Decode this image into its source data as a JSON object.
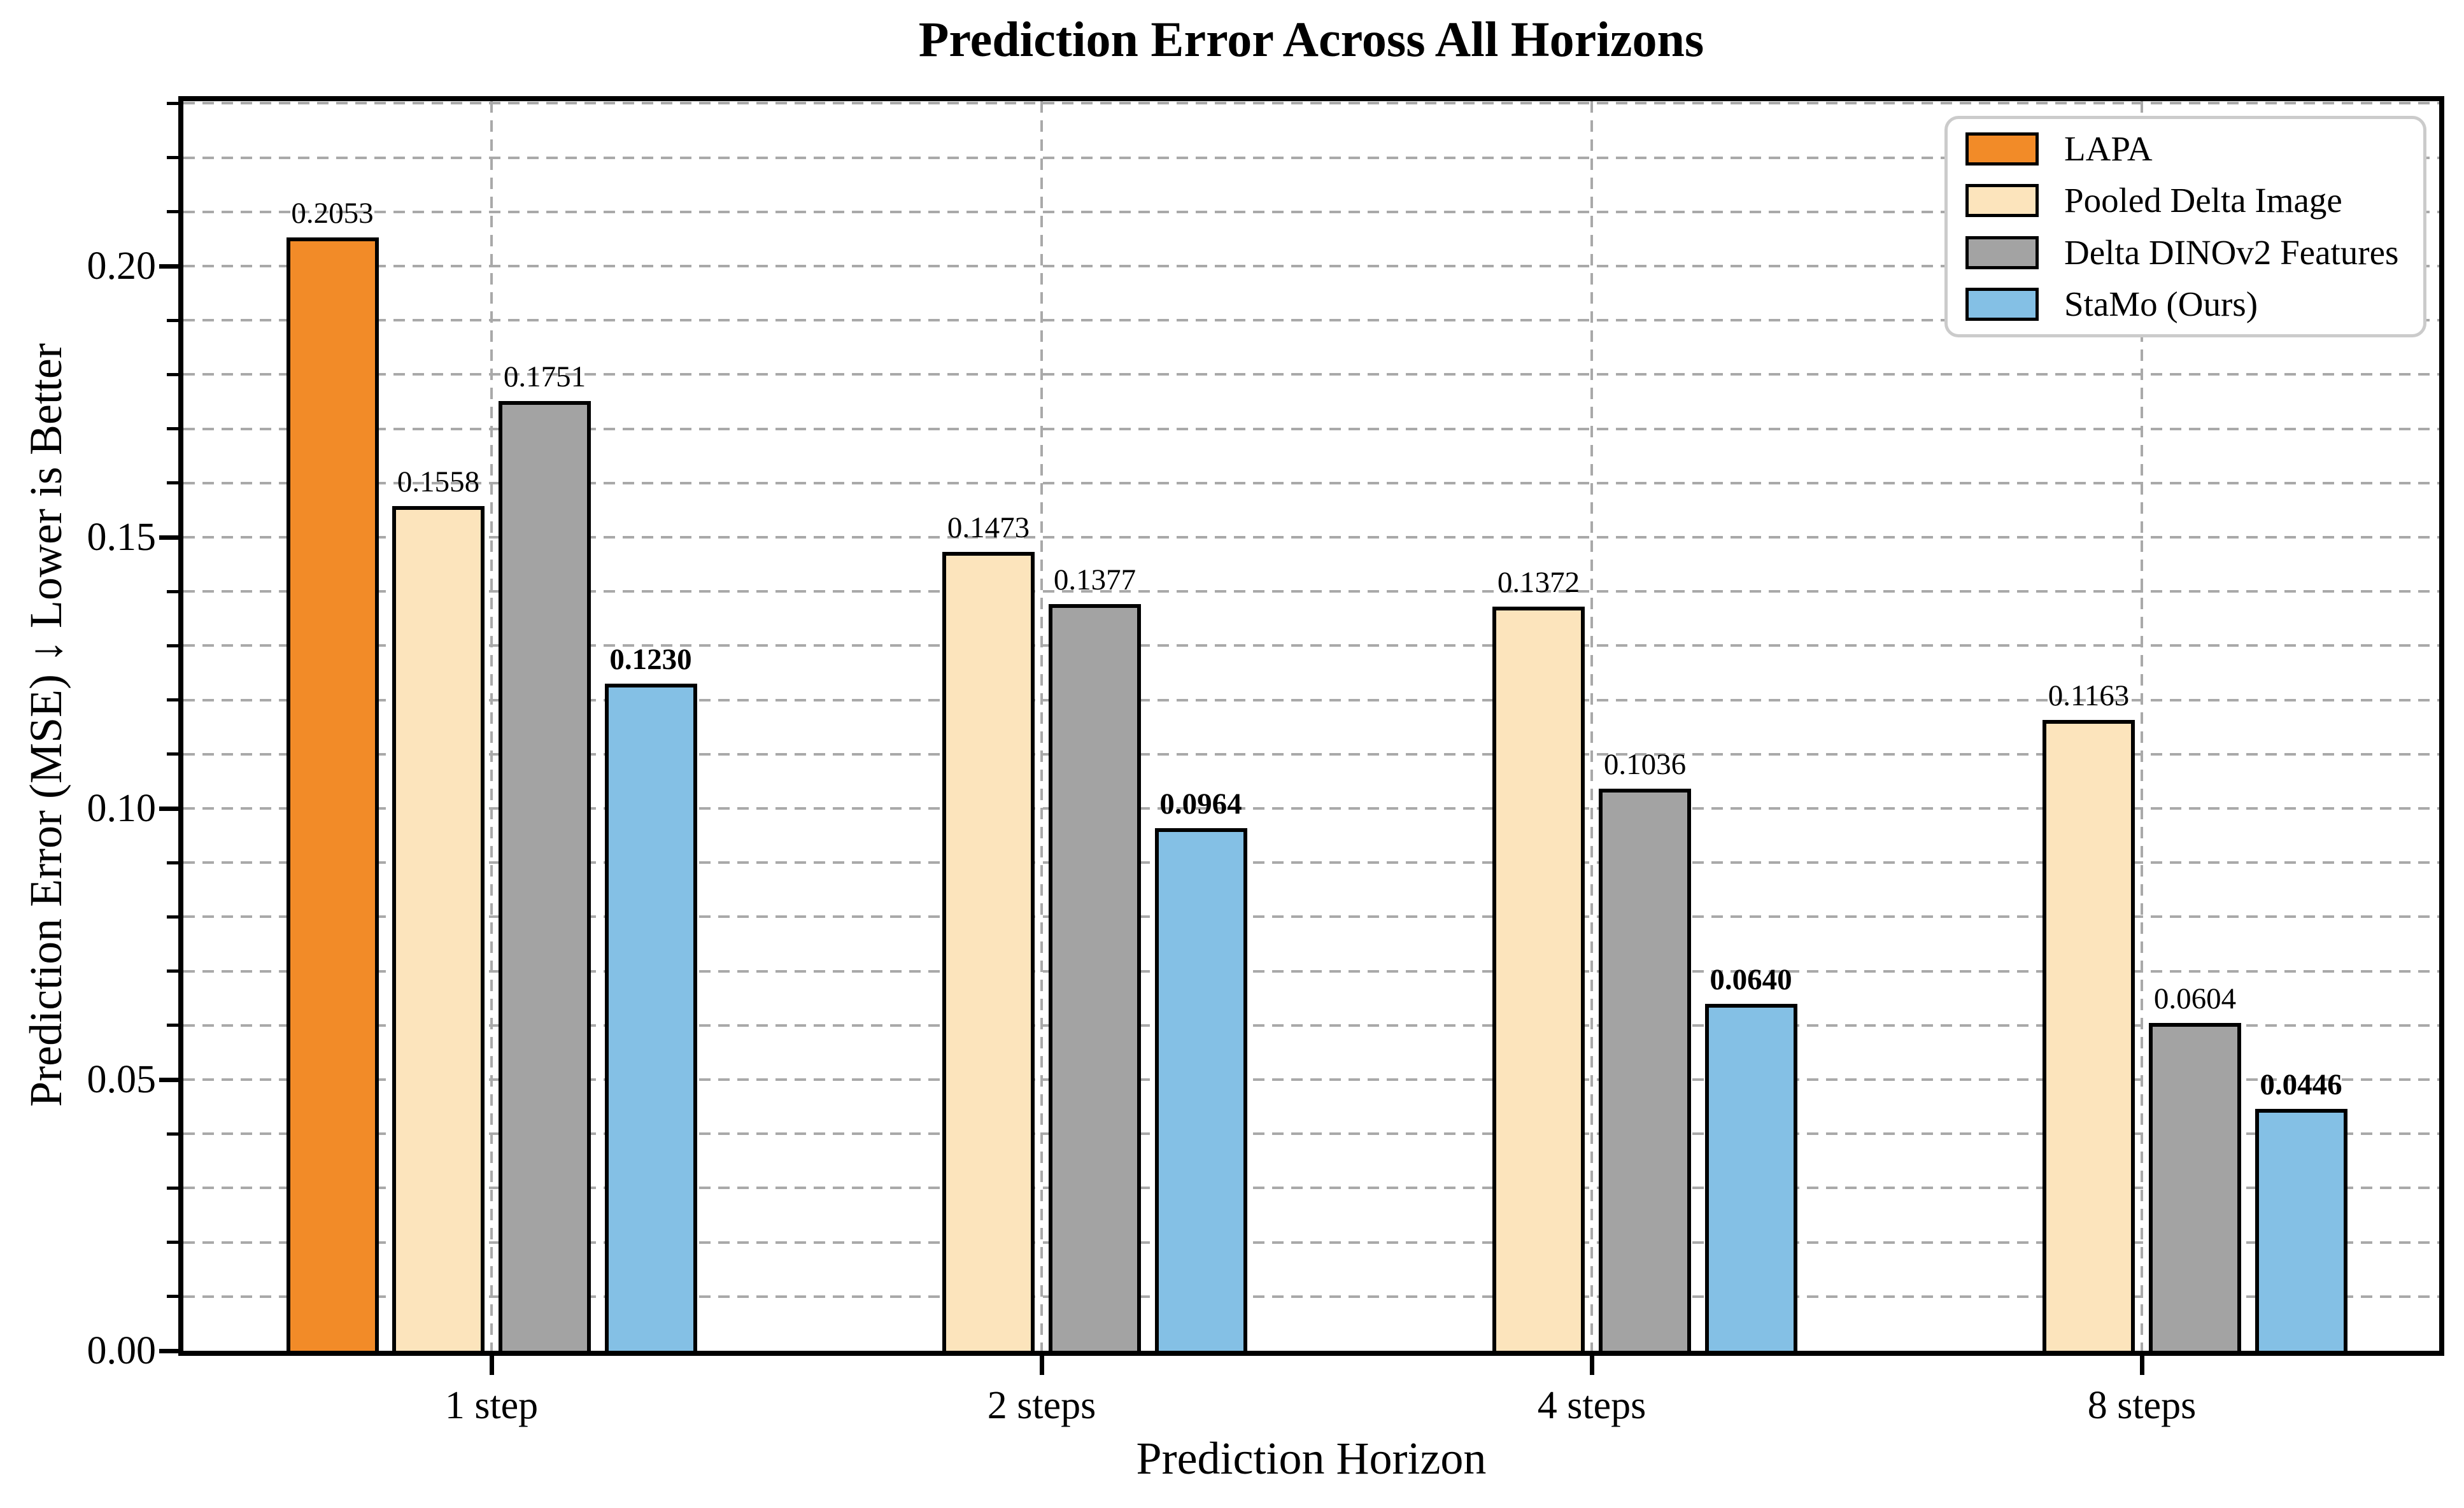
{
  "chart_data": {
    "type": "bar",
    "title": "Prediction Error Across All Horizons",
    "xlabel": "Prediction Horizon",
    "ylabel": "Prediction Error (MSE) ↓ Lower is Better",
    "categories": [
      "1 step",
      "2 steps",
      "4 steps",
      "8 steps"
    ],
    "series": [
      {
        "name": "LAPA",
        "color": "#F28B28",
        "values": [
          0.2053,
          null,
          null,
          null
        ],
        "value_labels": [
          "0.2053",
          null,
          null,
          null
        ],
        "bold_value_labels": false
      },
      {
        "name": "Pooled Delta Image",
        "color": "#FCE4BC",
        "values": [
          0.1558,
          0.1473,
          0.1372,
          0.1163
        ],
        "value_labels": [
          "0.1558",
          "0.1473",
          "0.1372",
          "0.1163"
        ],
        "bold_value_labels": false
      },
      {
        "name": "Delta DINOv2 Features",
        "color": "#A3A3A3",
        "values": [
          0.1751,
          0.1377,
          0.1036,
          0.0604
        ],
        "value_labels": [
          "0.1751",
          "0.1377",
          "0.1036",
          "0.0604"
        ],
        "bold_value_labels": false
      },
      {
        "name": "StaMo (Ours)",
        "color": "#84C0E5",
        "values": [
          0.123,
          0.0964,
          0.064,
          0.0446
        ],
        "value_labels": [
          "0.1230",
          "0.0964",
          "0.0640",
          "0.0446"
        ],
        "bold_value_labels": true
      }
    ],
    "ylim": [
      0,
      0.2304
    ],
    "y_major_ticks": [
      0.0,
      0.05,
      0.1,
      0.15,
      0.2
    ],
    "y_major_tick_labels": [
      "0.00",
      "0.05",
      "0.10",
      "0.15",
      "0.20"
    ],
    "y_minor_step": 0.01,
    "grid": true,
    "grid_style": "dashed",
    "legend_position": "upper right",
    "value_label_decimals": 4
  },
  "colors": {
    "background": "#ffffff",
    "text": "#000000",
    "grid": "#a9a9a9",
    "bar_edge": "#000000",
    "legend_border": "#cbcbcb"
  }
}
